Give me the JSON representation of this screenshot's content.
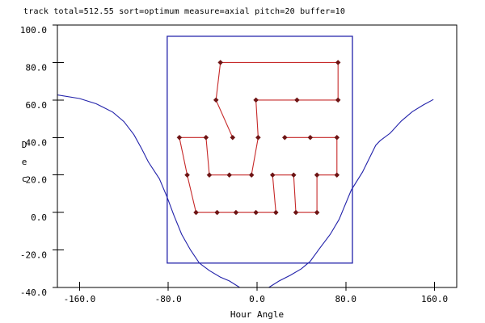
{
  "colors": {
    "background": "#ffffff",
    "axis": "#000000",
    "text": "#000000",
    "track_line": "#c62828",
    "track_marker": "#6e1414",
    "boundary": "#2222aa",
    "horizon_curve": "#2222aa"
  },
  "params": {
    "track_total": "512.55",
    "sort": "optimum",
    "measure": "axial",
    "pitch": "20",
    "buffer": "10"
  },
  "chart_data": {
    "type": "line",
    "title": "track total=512.55 sort=optimum measure=axial pitch=20 buffer=10",
    "xlabel": "Hour Angle",
    "ylabel": "Dec",
    "xlim": [
      -180,
      180
    ],
    "ylim": [
      -40,
      100
    ],
    "xticks": [
      -160,
      -80,
      0,
      80,
      160
    ],
    "yticks": [
      100,
      80,
      60,
      40,
      20,
      0,
      -20,
      -40
    ],
    "grid": false,
    "legend": "none",
    "boundary_box": {
      "x_min": -81,
      "x_max": 86,
      "y_min": -27,
      "y_max": 94
    },
    "series": [
      {
        "name": "track-path",
        "style": "line+markers",
        "marker": "diamond",
        "points": [
          [
            -22,
            40
          ],
          [
            -37,
            60
          ],
          [
            -33,
            80
          ],
          [
            73,
            80
          ],
          [
            73,
            60
          ],
          [
            36,
            60
          ],
          [
            -1,
            60
          ],
          [
            1,
            40
          ],
          [
            -5,
            20
          ],
          [
            -25,
            20
          ],
          [
            -43,
            20
          ],
          [
            -46,
            40
          ],
          [
            -70,
            40
          ],
          [
            -63,
            20
          ],
          [
            -55,
            0
          ],
          [
            -36,
            0
          ],
          [
            -19,
            0
          ],
          [
            -1,
            0
          ],
          [
            17,
            0
          ],
          [
            14,
            20
          ],
          [
            33,
            20
          ],
          [
            35,
            0
          ],
          [
            54,
            0
          ],
          [
            54,
            20
          ],
          [
            72,
            20
          ],
          [
            72,
            40
          ],
          [
            48,
            40
          ],
          [
            25,
            40
          ]
        ]
      },
      {
        "name": "horizon-curve",
        "style": "line",
        "marker": "none",
        "clip_to_axes": true,
        "points": [
          [
            -180,
            62.7
          ],
          [
            -160,
            60.8
          ],
          [
            -145,
            58.0
          ],
          [
            -130,
            53.5
          ],
          [
            -120,
            48.5
          ],
          [
            -111,
            41.5
          ],
          [
            -104,
            34.0
          ],
          [
            -98,
            27.0
          ],
          [
            -88,
            18.0
          ],
          [
            -81,
            8.0
          ],
          [
            -75,
            -1.5
          ],
          [
            -68,
            -11.6
          ],
          [
            -60,
            -20.0
          ],
          [
            -52,
            -27.0
          ],
          [
            -43,
            -31.0
          ],
          [
            -33,
            -34.5
          ],
          [
            -25,
            -36.5
          ],
          [
            -15,
            -40.2
          ],
          [
            -8,
            -42.5
          ],
          [
            -2,
            -43.2
          ],
          [
            4,
            -42.5
          ],
          [
            10,
            -40.2
          ],
          [
            20,
            -36.5
          ],
          [
            30,
            -33.5
          ],
          [
            40,
            -30.0
          ],
          [
            48,
            -26.0
          ],
          [
            56,
            -19.5
          ],
          [
            66,
            -11.6
          ],
          [
            74,
            -3.7
          ],
          [
            85,
            12.0
          ],
          [
            95,
            21.5
          ],
          [
            107,
            35.8
          ],
          [
            111,
            38.3
          ],
          [
            120,
            42.3
          ],
          [
            130,
            48.8
          ],
          [
            140,
            53.8
          ],
          [
            150,
            57.4
          ],
          [
            159,
            60.3
          ]
        ]
      }
    ]
  }
}
